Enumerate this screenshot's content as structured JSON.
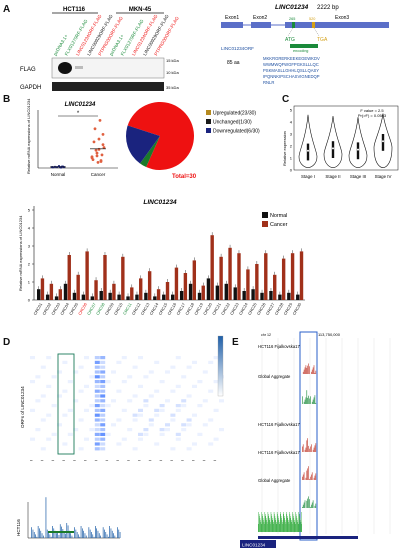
{
  "panels": {
    "A": {
      "letter": "A",
      "cell_lines": [
        "HCT116",
        "MKN-45"
      ],
      "lanes": [
        "pcDNA3.1+",
        "FLX01270RF-FLAG",
        "LINC01234ORF-FLAG",
        "LINC00929ORF-FLAG",
        "PTPRG00ORF-FLAG",
        "pcDNA3.1+",
        "FLX01270RF-FLAG",
        "LINC01234ORF-FLAG",
        "LINC00929ORF-FLAG",
        "PTPRG00ORF-FLAG"
      ],
      "blot_labels": [
        "FLAG",
        "GAPDH"
      ],
      "markers": [
        "15 kDa",
        "10 kDa",
        "35 kDa"
      ],
      "gene_title": "LINC01234",
      "gene_length": "2222 bp",
      "exons": [
        "Exon1",
        "Exon2",
        "Exon3"
      ],
      "coords": [
        "265",
        "520"
      ],
      "start_codon": "ATG",
      "stop_codon": "TGA",
      "orf_name": "LINC01234ORF",
      "orf_len": "85 aa",
      "encoding_label": "encoding",
      "sequence_lines": [
        "MKKRGRERKEEKEGEWKDV",
        "WWMWQFWGFPGKSLLLQC",
        "PSKMASLLGHHLQSLLQASY",
        "IPQNNKIPSCHASVIGNEDQP",
        "RNLR"
      ]
    },
    "B": {
      "letter": "B",
      "dot_title": "LINC01234",
      "ylabel": "Relative mRNA expressions of LINC01234",
      "groups": [
        "Normal",
        "Cancer"
      ],
      "significance": "*",
      "pie_legend": [
        "Upregulated(23/30)",
        "Unchanged(1/30)",
        "Downregulated(6/30)"
      ],
      "pie_total": "Total=30",
      "pie_colors": [
        "#ee1111",
        "#1a237e",
        "#1a7a2a"
      ],
      "bar_title": "LINC01234",
      "bar_legend": [
        "Normal",
        "Cancer"
      ],
      "bar_colors": [
        "#111111",
        "#a0301a"
      ],
      "bar_ylabel": "Relative mRNA expressions of LINC01234"
    },
    "C": {
      "letter": "C",
      "ylabel": "Relative expression",
      "stats": [
        "F value = 2.5",
        "Pr(>F) = 0.0583"
      ],
      "stages": [
        "Stage I",
        "Stage II",
        "Stage III",
        "Stage IV"
      ]
    },
    "D": {
      "letter": "D",
      "ylabel": "ORFs of LINC01234",
      "bottom_label": "HCT116"
    },
    "E": {
      "letter": "E",
      "chrom": "chr 12",
      "scale": "113,750,000",
      "tracks": [
        "HCT116 Fijalkovska17",
        "Global Aggregate",
        "HCT116 Fijalkovska17",
        "HCT116 Fijalkovska17",
        "Global Aggregate"
      ],
      "gene_label": "LINC01234"
    }
  },
  "chart_data": [
    {
      "type": "pie",
      "categories": [
        "Upregulated(23/30)",
        "Unchanged(1/30)",
        "Downregulated(6/30)"
      ],
      "values": [
        23,
        1,
        6
      ],
      "title": "",
      "legend": "right"
    },
    {
      "type": "scatter",
      "title": "LINC01234",
      "xlabel": "",
      "ylabel": "Relative mRNA expressions of LINC01234",
      "categories": [
        "Normal",
        "Cancer"
      ],
      "series": [
        {
          "name": "Normal",
          "values": [
            0.1,
            0.15,
            0.05,
            0.2,
            0.1,
            0.12,
            0.08,
            0.1,
            0.15,
            0.1
          ]
        },
        {
          "name": "Cancer",
          "values": [
            1.2,
            2.5,
            0.8,
            3.1,
            1.6,
            4.2,
            0.9,
            2.2,
            1.4,
            5.1,
            0.6,
            1.9,
            2.8,
            1.1,
            3.6,
            0.7,
            2.0,
            1.3
          ]
        }
      ],
      "ylim": [
        0,
        6
      ]
    },
    {
      "type": "bar",
      "title": "LINC01234",
      "xlabel": "",
      "ylabel": "Relative mRNA expressions of LINC01234",
      "categories": [
        "CRC01",
        "CRC02",
        "CRC03",
        "CRC04",
        "CRC05",
        "CRC06",
        "CRC07",
        "CRC08",
        "CRC09",
        "CRC10",
        "CRC11",
        "CRC12",
        "CRC13",
        "CRC14",
        "CRC15",
        "CRC16",
        "CRC17",
        "CRC18",
        "CRC19",
        "CRC20",
        "CRC21",
        "CRC22",
        "CRC23",
        "CRC24",
        "CRC25",
        "CRC26",
        "CRC27",
        "CRC28",
        "CRC29",
        "CRC30"
      ],
      "series": [
        {
          "name": "Normal",
          "values": [
            0.6,
            0.3,
            0.2,
            0.9,
            0.4,
            0.3,
            0.2,
            0.5,
            0.4,
            0.3,
            0.2,
            0.3,
            0.4,
            0.2,
            0.3,
            0.3,
            0.5,
            0.9,
            0.4,
            1.2,
            0.8,
            0.9,
            0.7,
            0.5,
            0.6,
            0.4,
            0.5,
            0.3,
            0.4,
            0.3
          ]
        },
        {
          "name": "Cancer",
          "values": [
            1.2,
            0.9,
            0.6,
            2.5,
            1.4,
            2.7,
            1.1,
            2.5,
            0.9,
            2.4,
            0.7,
            1.2,
            1.6,
            0.6,
            1.0,
            1.8,
            1.5,
            2.2,
            0.8,
            3.6,
            2.4,
            2.9,
            2.6,
            1.7,
            2.0,
            2.6,
            1.4,
            2.3,
            2.6,
            2.7
          ]
        }
      ],
      "ylim": [
        0,
        5
      ],
      "legend": "top-right"
    },
    {
      "type": "violin",
      "xlabel": "",
      "ylabel": "Relative expression",
      "categories": [
        "Stage I",
        "Stage II",
        "Stage III",
        "Stage IV"
      ],
      "values": [
        1.6,
        1.8,
        1.7,
        2.4
      ],
      "ylim": [
        0,
        5
      ]
    }
  ]
}
